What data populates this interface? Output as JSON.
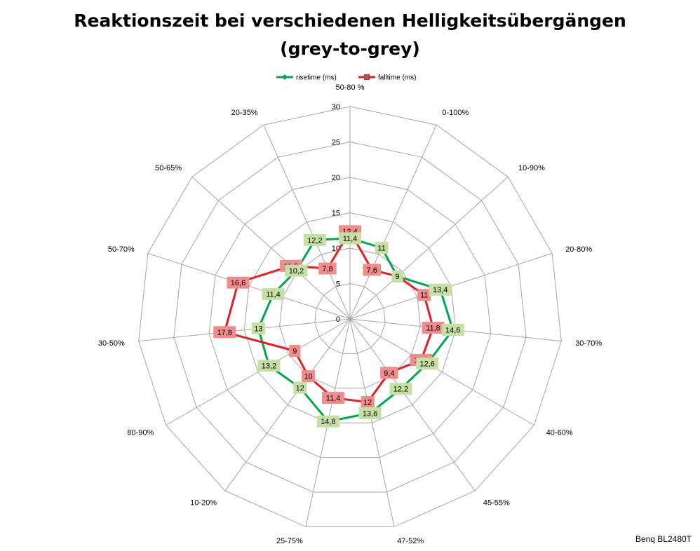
{
  "colors": {
    "rise": "#00a650",
    "fall": "#e31e24",
    "rise_label_bg": "#c6e0a4",
    "fall_label_bg": "#f28b8b",
    "grid": "#a6a6a6"
  },
  "chart_data": {
    "type": "radar",
    "title_lines": [
      "Reaktionszeit bei verschiedenen Helligkeitsübergängen",
      "(grey-to-grey)"
    ],
    "categories": [
      "50-80 %",
      "0-100%",
      "10-90%",
      "20-80%",
      "30-70%",
      "40-60%",
      "45-55%",
      "47-52%",
      "25-75%",
      "10-20%",
      "80-90%",
      "30-50%",
      "50-70%",
      "50-65%",
      "20-35%"
    ],
    "series": [
      {
        "name": "risetime (ms)",
        "values": [
          11.4,
          11,
          9,
          13.4,
          14.6,
          12.6,
          12.2,
          13.6,
          14.8,
          12,
          13.2,
          13,
          11.4,
          10.2,
          12.2
        ]
      },
      {
        "name": "falltime (ms)",
        "values": [
          12.4,
          7.6,
          9,
          11,
          11.8,
          11.6,
          9.4,
          12,
          11.4,
          10,
          9,
          17.8,
          16.6,
          11.2,
          7.8
        ]
      }
    ],
    "data_labels": {
      "rise": [
        "11,4",
        "11",
        "9",
        "13,4",
        "14,6",
        "12,6",
        "12,2",
        "13,6",
        "14,8",
        "12",
        "13,2",
        "13",
        "11,4",
        "10,2",
        "12,2"
      ],
      "fall": [
        "12,4",
        "7,6",
        "9",
        "11",
        "11,8",
        "11,6",
        "9,4",
        "12",
        "11,4",
        "10",
        "9",
        "17,8",
        "16,6",
        "11,2",
        "7,8"
      ]
    },
    "ticks": [
      "0",
      "5",
      "10",
      "15",
      "20",
      "25",
      "30"
    ],
    "rmax": 30,
    "rstep": 5,
    "grid": true,
    "legend_position": "top"
  },
  "footer": "Benq BL2480T"
}
